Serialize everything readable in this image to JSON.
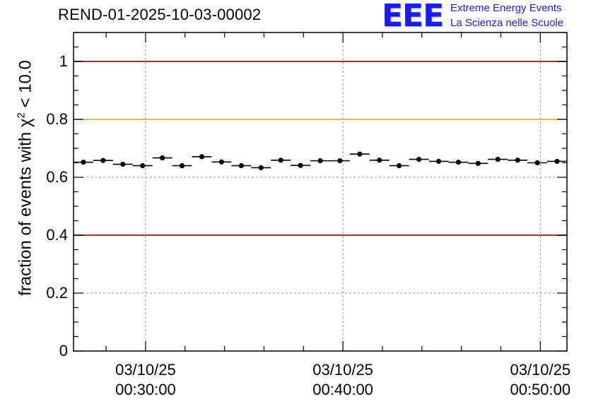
{
  "title": "REND-01-2025-10-03-00002",
  "logo": {
    "mark": "EEE",
    "line1": "Extreme Energy Events",
    "line2": "La Scienza nelle Scuole"
  },
  "colors": {
    "red_line": "#e0161b",
    "yellow_line": "#ffc000",
    "grid": "#9a9a9a",
    "marker": "#000000"
  },
  "chart_data": {
    "type": "scatter",
    "title": "REND-01-2025-10-03-00002",
    "ylabel_prefix": "fraction of events with",
    "ylabel_symbol": "χ",
    "ylabel_sup": "2",
    "ylabel_suffix": "< 10.0",
    "xlabel": "",
    "xlim_min": [
      26.35,
      51.35
    ],
    "ylim": [
      0,
      1.1
    ],
    "yticks": [
      {
        "value": 0,
        "label": "0"
      },
      {
        "value": 0.2,
        "label": "0.2"
      },
      {
        "value": 0.4,
        "label": "0.4"
      },
      {
        "value": 0.6,
        "label": "0.6"
      },
      {
        "value": 0.8,
        "label": "0.8"
      },
      {
        "value": 1,
        "label": "1"
      }
    ],
    "xticks": [
      {
        "value": 30,
        "date": "03/10/25",
        "time": "00:30:00"
      },
      {
        "value": 40,
        "date": "03/10/25",
        "time": "00:40:00"
      },
      {
        "value": 50,
        "date": "03/10/25",
        "time": "00:50:00"
      }
    ],
    "reference_lines": [
      {
        "value": 1.0,
        "color": "red"
      },
      {
        "value": 0.8,
        "color": "yellow"
      },
      {
        "value": 0.4,
        "color": "red"
      }
    ],
    "grid": true,
    "bin_width_min": 1.0,
    "series": [
      {
        "name": "fraction",
        "x": [
          26.85,
          27.85,
          28.85,
          29.85,
          30.85,
          31.85,
          32.85,
          33.85,
          34.85,
          35.85,
          36.85,
          37.85,
          38.85,
          39.85,
          40.85,
          41.85,
          42.85,
          43.85,
          44.85,
          45.85,
          46.85,
          47.85,
          48.85,
          49.85,
          50.85
        ],
        "y": [
          0.652,
          0.658,
          0.645,
          0.64,
          0.667,
          0.64,
          0.671,
          0.653,
          0.64,
          0.633,
          0.659,
          0.641,
          0.657,
          0.657,
          0.68,
          0.659,
          0.64,
          0.662,
          0.655,
          0.652,
          0.648,
          0.662,
          0.659,
          0.65,
          0.655
        ],
        "yerr": [
          0.004,
          0.004,
          0.004,
          0.004,
          0.004,
          0.004,
          0.004,
          0.004,
          0.004,
          0.004,
          0.004,
          0.004,
          0.004,
          0.004,
          0.004,
          0.004,
          0.004,
          0.004,
          0.004,
          0.004,
          0.004,
          0.004,
          0.004,
          0.004,
          0.004
        ]
      }
    ]
  }
}
